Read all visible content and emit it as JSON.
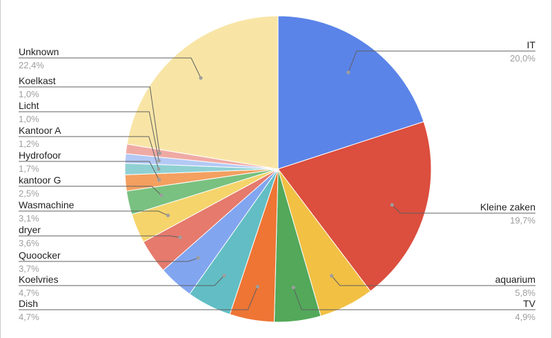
{
  "chart_data": {
    "type": "pie",
    "title": "",
    "start_angle_deg": 0,
    "direction": "clockwise",
    "label_format": "name+percent",
    "slices": [
      {
        "label": "IT",
        "value": 20.0,
        "value_label": "20,0%",
        "color": "#5b84e8"
      },
      {
        "label": "Kleine zaken",
        "value": 19.7,
        "value_label": "19,7%",
        "color": "#dc4e3e"
      },
      {
        "label": "aquarium",
        "value": 5.8,
        "value_label": "5,8%",
        "color": "#f2c043"
      },
      {
        "label": "TV",
        "value": 4.9,
        "value_label": "4,9%",
        "color": "#53a85a"
      },
      {
        "label": "Dish",
        "value": 4.7,
        "value_label": "4,7%",
        "color": "#ee7534"
      },
      {
        "label": "Koelvries",
        "value": 4.7,
        "value_label": "4,7%",
        "color": "#62bec4"
      },
      {
        "label": "Quoocker",
        "value": 3.7,
        "value_label": "3,7%",
        "color": "#82a5f0"
      },
      {
        "label": "dryer",
        "value": 3.6,
        "value_label": "3,6%",
        "color": "#e57a6d"
      },
      {
        "label": "Wasmachine",
        "value": 3.1,
        "value_label": "3,1%",
        "color": "#f5d46b"
      },
      {
        "label": "kantoor G",
        "value": 2.5,
        "value_label": "2,5%",
        "color": "#79c180"
      },
      {
        "label": "Hydrofoor",
        "value": 1.7,
        "value_label": "1,7%",
        "color": "#f3a060"
      },
      {
        "label": "Kantoor A",
        "value": 1.2,
        "value_label": "1,2%",
        "color": "#8fd0d3"
      },
      {
        "label": "Licht",
        "value": 1.0,
        "value_label": "1,0%",
        "color": "#b3c9f5"
      },
      {
        "label": "Koelkast",
        "value": 1.0,
        "value_label": "1,0%",
        "color": "#efaaa4"
      },
      {
        "label": "Unknown",
        "value": 22.4,
        "value_label": "22,4%",
        "color": "#f8e5a6"
      }
    ]
  }
}
